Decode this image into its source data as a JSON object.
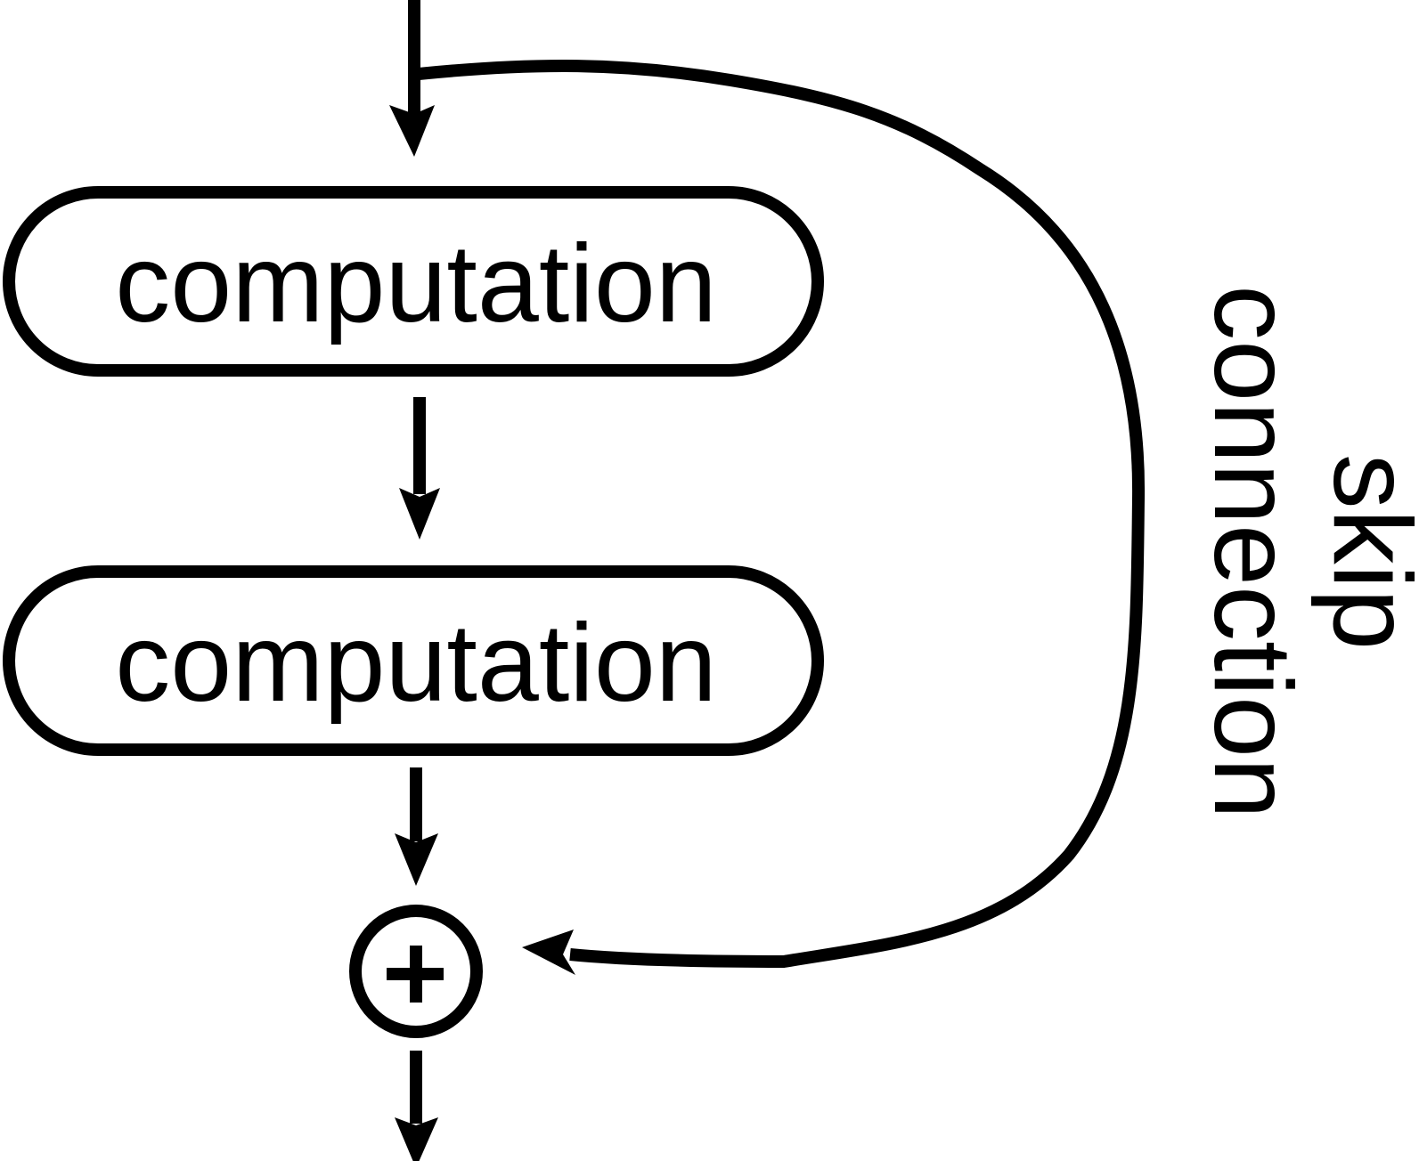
{
  "blocks": [
    {
      "label": "computation"
    },
    {
      "label": "computation"
    }
  ],
  "sum_node": {
    "symbol": "+"
  },
  "skip": {
    "line1": "skip",
    "line2": "connection"
  },
  "colors": {
    "stroke": "#000000",
    "background": "#ffffff"
  }
}
